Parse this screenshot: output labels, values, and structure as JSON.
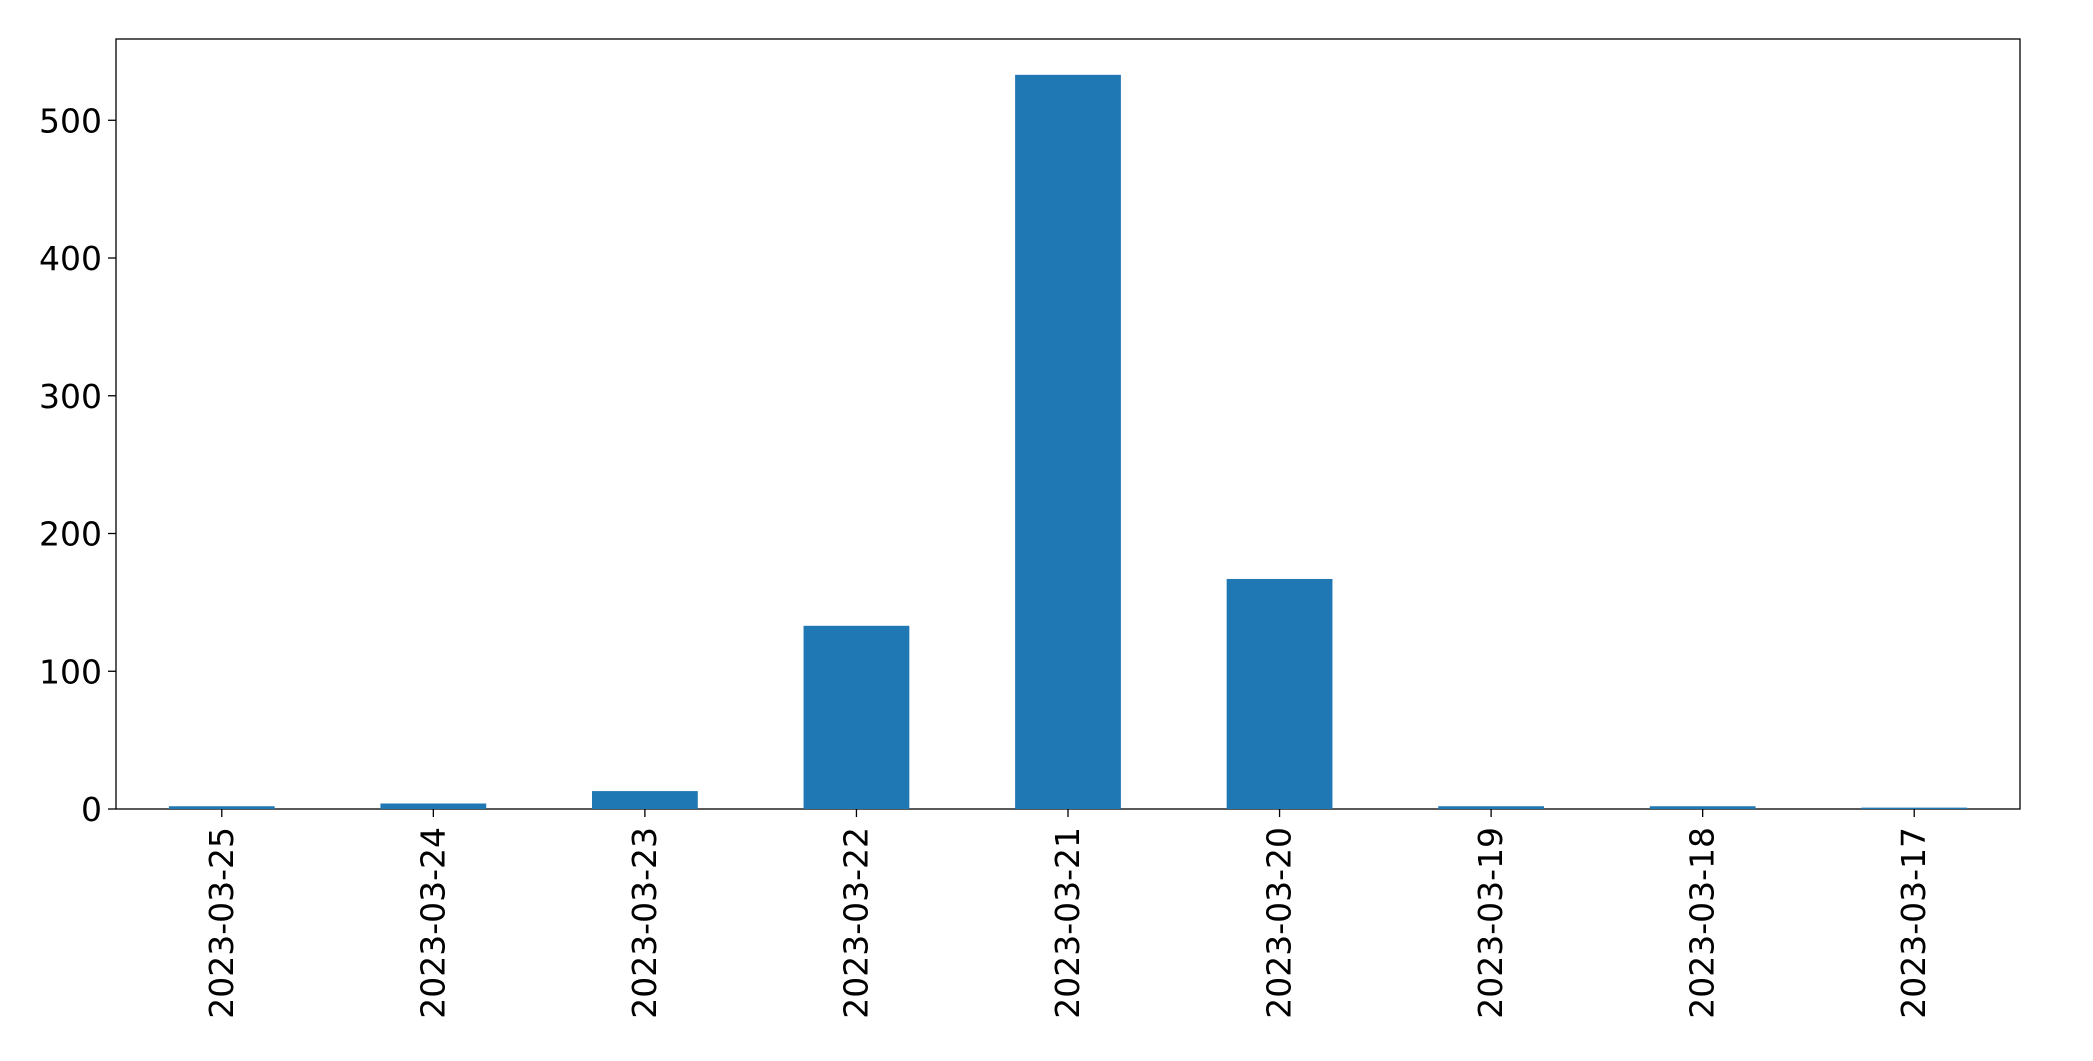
{
  "chart_data": {
    "type": "bar",
    "title": "",
    "xlabel": "",
    "ylabel": "",
    "categories": [
      "2023-03-25",
      "2023-03-24",
      "2023-03-23",
      "2023-03-22",
      "2023-03-21",
      "2023-03-20",
      "2023-03-19",
      "2023-03-18",
      "2023-03-17"
    ],
    "values": [
      2,
      4,
      13,
      133,
      533,
      167,
      2,
      2,
      1
    ],
    "ylim": [
      0,
      559
    ],
    "yticks": [
      0,
      100,
      200,
      300,
      400,
      500
    ],
    "grid": false,
    "legend": "none",
    "bar_color": "#1f77b4"
  }
}
